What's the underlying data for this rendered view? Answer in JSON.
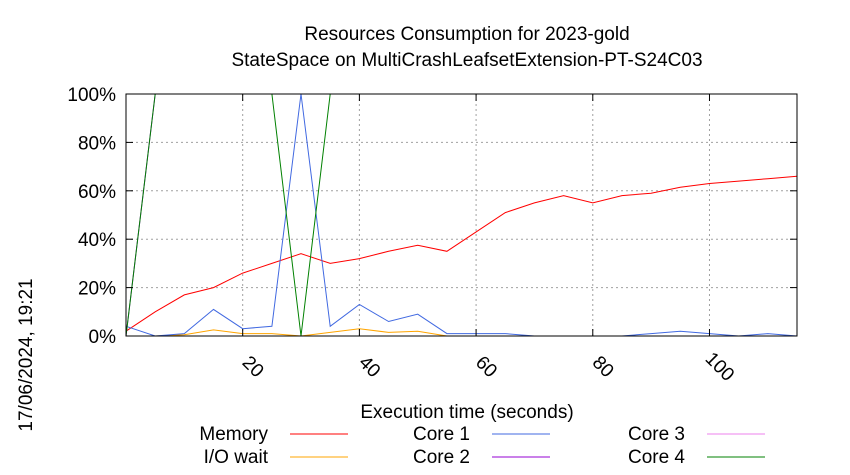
{
  "chart_data": {
    "type": "line",
    "title": "Resources Consumption for 2023-gold",
    "subtitle": "StateSpace on MultiCrashLeafsetExtension-PT-S24C03",
    "xlabel": "Execution time (seconds)",
    "ylabel": "",
    "timestamp": "17/06/2024, 19:21",
    "xlim": [
      0,
      115
    ],
    "ylim": [
      0,
      100
    ],
    "x_ticks": [
      {
        "value": 20,
        "label": "20"
      },
      {
        "value": 40,
        "label": "40"
      },
      {
        "value": 60,
        "label": "60"
      },
      {
        "value": 80,
        "label": "80"
      },
      {
        "value": 100,
        "label": "100"
      }
    ],
    "y_ticks": [
      {
        "value": 0,
        "label": "0%"
      },
      {
        "value": 20,
        "label": "20%"
      },
      {
        "value": 40,
        "label": "40%"
      },
      {
        "value": 60,
        "label": "60%"
      },
      {
        "value": 80,
        "label": "80%"
      },
      {
        "value": 100,
        "label": "100%"
      }
    ],
    "grid": true,
    "legend_position": "bottom",
    "series": [
      {
        "name": "Memory",
        "color": "#ff0000",
        "points": [
          [
            0,
            2
          ],
          [
            5,
            10
          ],
          [
            10,
            17
          ],
          [
            15,
            20
          ],
          [
            20,
            26
          ],
          [
            25,
            30
          ],
          [
            30,
            34
          ],
          [
            35,
            30
          ],
          [
            40,
            32
          ],
          [
            45,
            35
          ],
          [
            50,
            37.5
          ],
          [
            55,
            35
          ],
          [
            60,
            43
          ],
          [
            65,
            51
          ],
          [
            70,
            55
          ],
          [
            75,
            58
          ],
          [
            80,
            55
          ],
          [
            85,
            58
          ],
          [
            90,
            59
          ],
          [
            95,
            61.5
          ],
          [
            100,
            63
          ],
          [
            105,
            64
          ],
          [
            110,
            65
          ],
          [
            115,
            66
          ]
        ]
      },
      {
        "name": "I/O wait",
        "color": "#ffa500",
        "points": [
          [
            0,
            0
          ],
          [
            5,
            0
          ],
          [
            10,
            0.5
          ],
          [
            15,
            2.5
          ],
          [
            20,
            1
          ],
          [
            25,
            1
          ],
          [
            30,
            0
          ],
          [
            35,
            1.5
          ],
          [
            40,
            3
          ],
          [
            45,
            1.5
          ],
          [
            50,
            2
          ],
          [
            55,
            0
          ],
          [
            60,
            0
          ],
          [
            115,
            0
          ]
        ]
      },
      {
        "name": "Core 1",
        "color": "#4169e1",
        "points": [
          [
            0,
            4
          ],
          [
            5,
            0
          ],
          [
            10,
            1
          ],
          [
            15,
            11
          ],
          [
            20,
            3
          ],
          [
            25,
            4
          ],
          [
            30,
            100
          ],
          [
            35,
            4
          ],
          [
            40,
            13
          ],
          [
            45,
            6
          ],
          [
            50,
            9
          ],
          [
            55,
            1
          ],
          [
            60,
            1
          ],
          [
            65,
            1
          ],
          [
            70,
            0
          ],
          [
            75,
            0
          ],
          [
            80,
            0
          ],
          [
            85,
            0
          ],
          [
            90,
            1
          ],
          [
            95,
            2
          ],
          [
            100,
            1
          ],
          [
            105,
            0
          ],
          [
            110,
            1
          ],
          [
            115,
            0
          ]
        ]
      },
      {
        "name": "Core 2",
        "color": "#9400d3",
        "points": [
          [
            0,
            0
          ],
          [
            5,
            100
          ],
          [
            25,
            100
          ],
          [
            30,
            100
          ],
          [
            35,
            100
          ],
          [
            115,
            100
          ]
        ]
      },
      {
        "name": "Core 3",
        "color": "#ee82ee",
        "points": [
          [
            25,
            100
          ],
          [
            35,
            100
          ]
        ]
      },
      {
        "name": "Core 4",
        "color": "#008000",
        "points": [
          [
            0,
            0
          ],
          [
            5,
            100
          ],
          [
            25,
            100
          ],
          [
            30,
            0
          ],
          [
            35,
            100
          ],
          [
            115,
            100
          ]
        ]
      }
    ]
  }
}
